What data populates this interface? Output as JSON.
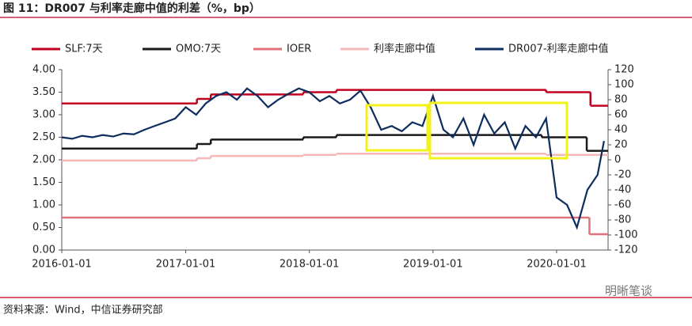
{
  "chart_data": {
    "type": "line",
    "title": "图 11：DR007 与利率走廊中值的利差（%，bp）",
    "source": "资料来源：Wind，中信证券研究部",
    "watermark": "明晰笔谈",
    "xlim": [
      "2016-01-01",
      "2020-06-01"
    ],
    "xticks": [
      "2016-01-01",
      "2017-01-01",
      "2018-01-01",
      "2019-01-01",
      "2020-01-01"
    ],
    "ylim": [
      0,
      4
    ],
    "yticks": [
      {
        "value": 0,
        "label": "0.00"
      },
      {
        "value": 0.5,
        "label": "0.50"
      },
      {
        "value": 1,
        "label": "1.00"
      },
      {
        "value": 1.5,
        "label": "1.50"
      },
      {
        "value": 2,
        "label": "2.00"
      },
      {
        "value": 2.5,
        "label": "2.50"
      },
      {
        "value": 3,
        "label": "3.00"
      },
      {
        "value": 3.5,
        "label": "3.50"
      },
      {
        "value": 4,
        "label": "4.00"
      }
    ],
    "y2lim": [
      -120,
      120
    ],
    "y2ticks": [
      -120,
      -100,
      -80,
      -60,
      -40,
      -20,
      0,
      20,
      40,
      60,
      80,
      100,
      120
    ],
    "series": [
      {
        "name": "SLF:7天",
        "color": "#c0001e",
        "step": true,
        "x": [
          "2016-01-01",
          "2017-02-03",
          "2017-03-16",
          "2017-12-14",
          "2018-03-22",
          "2019-12-01",
          "2020-04-10"
        ],
        "values": [
          3.25,
          3.35,
          3.45,
          3.5,
          3.55,
          3.5,
          3.2
        ]
      },
      {
        "name": "OMO:7天",
        "color": "#1a1a1a",
        "step": true,
        "x": [
          "2016-01-01",
          "2017-02-03",
          "2017-03-16",
          "2017-12-14",
          "2018-03-22",
          "2019-11-18",
          "2020-03-30"
        ],
        "values": [
          2.25,
          2.35,
          2.45,
          2.5,
          2.55,
          2.5,
          2.2
        ]
      },
      {
        "name": "IOER",
        "color": "#e0707a",
        "step": true,
        "x": [
          "2016-01-01",
          "2020-04-07"
        ],
        "values": [
          0.72,
          0.35
        ]
      },
      {
        "name": "利率走廊中值",
        "color": "#f4b8b8",
        "step": true,
        "x": [
          "2016-01-01",
          "2017-02-03",
          "2017-03-16",
          "2017-12-14",
          "2018-03-22",
          "2019-12-01"
        ],
        "values": [
          1.985,
          2.035,
          2.085,
          2.11,
          2.135,
          2.11
        ]
      },
      {
        "name": "DR007-利率走廊中值",
        "color": "#0d2d5e",
        "axis": "y2",
        "x": [
          "2016-01-01",
          "2016-02-01",
          "2016-03-01",
          "2016-04-01",
          "2016-05-01",
          "2016-06-01",
          "2016-07-01",
          "2016-08-01",
          "2016-09-01",
          "2016-10-01",
          "2016-11-01",
          "2016-12-01",
          "2017-01-01",
          "2017-02-01",
          "2017-03-01",
          "2017-04-01",
          "2017-05-01",
          "2017-06-01",
          "2017-07-01",
          "2017-08-01",
          "2017-09-01",
          "2017-10-01",
          "2017-11-01",
          "2017-12-01",
          "2018-01-01",
          "2018-02-01",
          "2018-03-01",
          "2018-04-01",
          "2018-05-01",
          "2018-06-01",
          "2018-07-01",
          "2018-08-01",
          "2018-09-01",
          "2018-10-01",
          "2018-11-01",
          "2018-12-01",
          "2019-01-01",
          "2019-02-01",
          "2019-03-01",
          "2019-04-01",
          "2019-05-01",
          "2019-06-01",
          "2019-07-01",
          "2019-08-01",
          "2019-09-01",
          "2019-10-01",
          "2019-11-01",
          "2019-12-01",
          "2020-01-01",
          "2020-02-01",
          "2020-03-01",
          "2020-04-01",
          "2020-05-01",
          "2020-05-20"
        ],
        "values": [
          30,
          28,
          32,
          30,
          33,
          31,
          35,
          34,
          40,
          45,
          50,
          55,
          70,
          60,
          75,
          85,
          90,
          80,
          95,
          85,
          70,
          80,
          88,
          95,
          90,
          78,
          85,
          75,
          80,
          92,
          70,
          40,
          45,
          38,
          50,
          45,
          85,
          40,
          30,
          55,
          20,
          60,
          35,
          50,
          15,
          45,
          30,
          55,
          -50,
          -60,
          -90,
          -40,
          -20,
          25
        ]
      }
    ]
  }
}
